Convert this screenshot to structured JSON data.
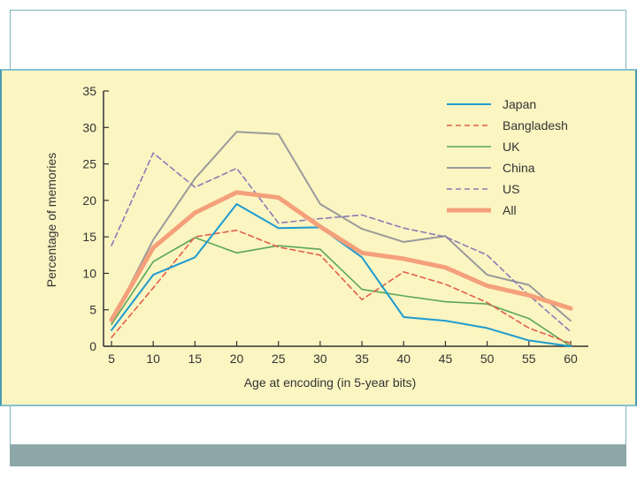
{
  "chart_data": {
    "type": "line",
    "title": "",
    "xlabel": "Age at encoding (in 5-year bits)",
    "ylabel": "Percentage of memories",
    "xlim": [
      5,
      60
    ],
    "ylim": [
      0,
      35
    ],
    "x_ticks": [
      5,
      10,
      15,
      20,
      25,
      30,
      35,
      40,
      45,
      50,
      55,
      60
    ],
    "y_ticks": [
      0,
      5,
      10,
      15,
      20,
      25,
      30,
      35
    ],
    "x": [
      5,
      10,
      15,
      20,
      25,
      30,
      35,
      40,
      45,
      50,
      55,
      60
    ],
    "legend_position": "top-right",
    "series": [
      {
        "name": "Japan",
        "color": "#1e9bd0",
        "style": "solid",
        "width": 2,
        "values": [
          2.2,
          9.8,
          12.2,
          19.5,
          16.2,
          16.3,
          12.2,
          4.0,
          3.5,
          2.5,
          0.8,
          0.0
        ]
      },
      {
        "name": "Bangladesh",
        "color": "#e0604a",
        "style": "dashed",
        "width": 1.6,
        "values": [
          1.2,
          8.0,
          15.0,
          15.9,
          13.6,
          12.5,
          6.4,
          10.2,
          8.5,
          6.0,
          2.5,
          0.4
        ]
      },
      {
        "name": "UK",
        "color": "#5aa65a",
        "style": "solid",
        "width": 1.6,
        "values": [
          3.0,
          11.6,
          14.9,
          12.8,
          13.8,
          13.3,
          7.8,
          6.9,
          6.1,
          5.8,
          3.8,
          0.0
        ]
      },
      {
        "name": "China",
        "color": "#9a9a9a",
        "style": "solid",
        "width": 2,
        "values": [
          3.4,
          14.6,
          23.0,
          29.4,
          29.1,
          19.5,
          16.1,
          14.3,
          15.1,
          9.8,
          8.4,
          3.5
        ]
      },
      {
        "name": "US",
        "color": "#8b7bb5",
        "style": "dashed",
        "width": 1.6,
        "values": [
          13.8,
          26.5,
          21.8,
          24.4,
          16.9,
          17.5,
          18.0,
          16.2,
          15.0,
          12.5,
          7.0,
          2.0
        ]
      },
      {
        "name": "All",
        "color": "#f4a07a",
        "style": "solid",
        "width": 5,
        "values": [
          3.6,
          13.5,
          18.3,
          21.1,
          20.4,
          16.4,
          12.8,
          12.0,
          10.8,
          8.3,
          7.0,
          5.2
        ]
      }
    ]
  }
}
